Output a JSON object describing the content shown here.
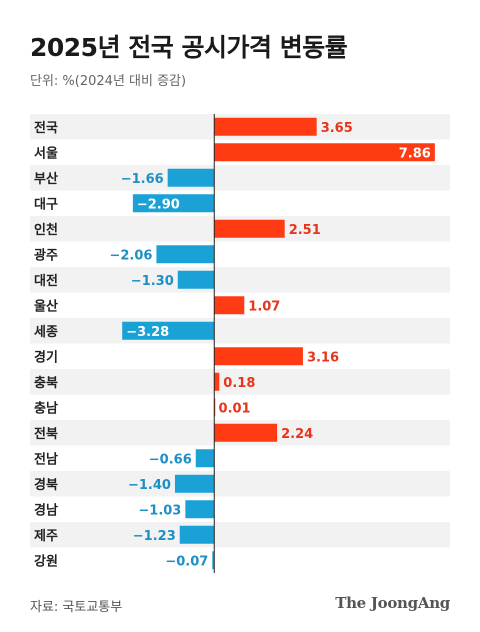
{
  "chart_data": {
    "type": "bar",
    "orientation": "horizontal",
    "title": "2025년 전국 공시가격 변동률",
    "subtitle": "단위: %(2024년 대비 증감)",
    "categories": [
      "전국",
      "서울",
      "부산",
      "대구",
      "인천",
      "광주",
      "대전",
      "울산",
      "세종",
      "경기",
      "충북",
      "충남",
      "전북",
      "전남",
      "경북",
      "경남",
      "제주",
      "강원"
    ],
    "values": [
      3.65,
      7.86,
      -1.66,
      -2.9,
      2.51,
      -2.06,
      -1.3,
      1.07,
      -3.28,
      3.16,
      0.18,
      0.01,
      2.24,
      -0.66,
      -1.4,
      -1.03,
      -1.23,
      -0.07
    ],
    "value_labels": [
      "3.65",
      "7.86",
      "−1.66",
      "−2.90",
      "2.51",
      "−2.06",
      "−1.30",
      "1.07",
      "−3.28",
      "3.16",
      "0.18",
      "0.01",
      "2.24",
      "−0.66",
      "−1.40",
      "−1.03",
      "−1.23",
      "−0.07"
    ],
    "xlim": [
      -4.0,
      8.4
    ],
    "colors": {
      "positive": "#ff3b14",
      "negative": "#1aa2d6",
      "positive_label": "#e8341a",
      "negative_label": "#1d8fc4",
      "category_label": "#222222",
      "row_alt": "#f2f2f2",
      "axis": "#222222"
    }
  },
  "footer": {
    "source": "자료: 국토교통부",
    "brand": "The JoongAng"
  }
}
